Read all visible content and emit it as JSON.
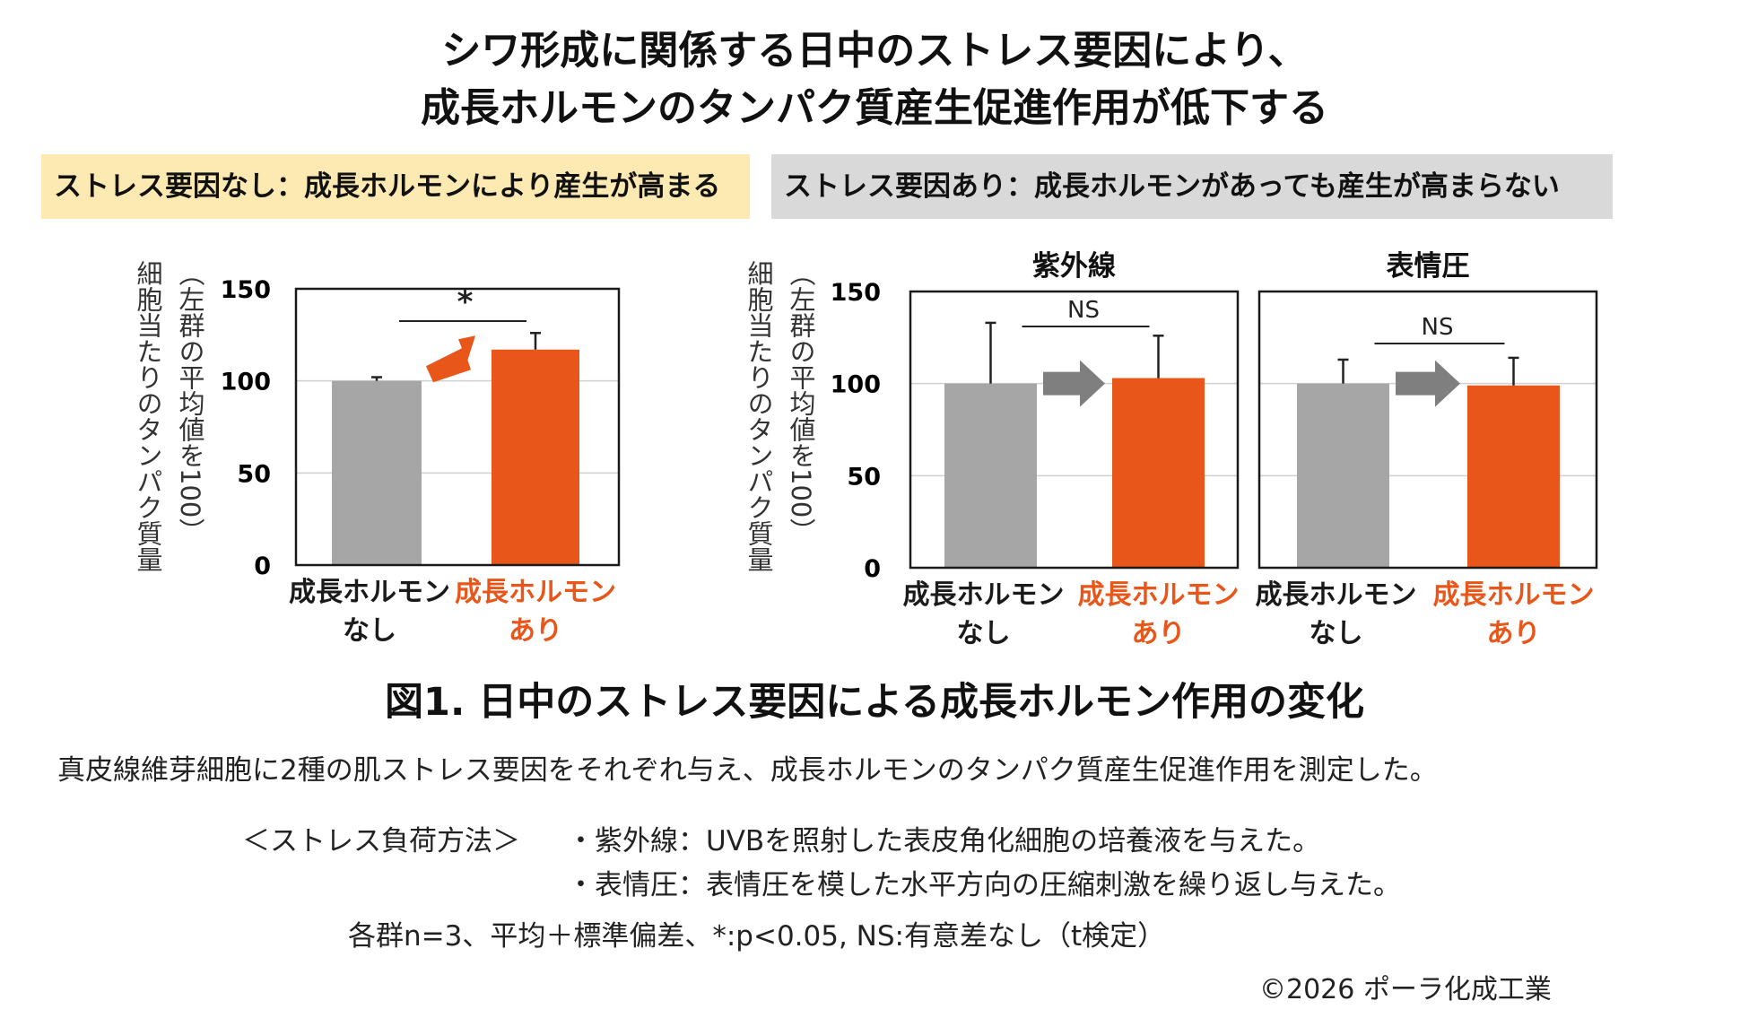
{
  "title": {
    "line1": "シワ形成に関係する日中のストレス要因により、",
    "line2": "成長ホルモンのタンパク質産生促進作用が低下する"
  },
  "labels": {
    "no_stress": "ストレス要因なし：成長ホルモンにより産生が高まる",
    "stress": "ストレス要因あり：成長ホルモンがあっても産生が高まらない"
  },
  "colors": {
    "control": "#a6a6a6",
    "treated": "#e8561a",
    "arrow_sig": "#e8561a",
    "arrow_ns": "#7f7f7f",
    "no_stress_bg": "#fde9b2",
    "stress_bg": "#d9d9d9"
  },
  "chart_data": [
    {
      "type": "bar",
      "title": "",
      "ylabel": "細胞当たりのタンパク質量\n（左群の平均値を100）",
      "ylim": [
        0,
        150
      ],
      "yticks": [
        0,
        50,
        100,
        150
      ],
      "categories": [
        "成長ホルモン\nなし",
        "成長ホルモン\nあり"
      ],
      "values": [
        100,
        117
      ],
      "errors": [
        2,
        9
      ],
      "significance": "*"
    },
    {
      "type": "bar",
      "title": "紫外線",
      "ylabel": "細胞当たりのタンパク質量\n（左群の平均値を100）",
      "ylim": [
        0,
        150
      ],
      "yticks": [
        0,
        50,
        100,
        150
      ],
      "categories": [
        "成長ホルモン\nなし",
        "成長ホルモン\nあり"
      ],
      "values": [
        100,
        103
      ],
      "errors": [
        33,
        23
      ],
      "significance": "NS"
    },
    {
      "type": "bar",
      "title": "表情圧",
      "ylabel": "",
      "ylim": [
        0,
        150
      ],
      "yticks": [],
      "categories": [
        "成長ホルモン\nなし",
        "成長ホルモン\nあり"
      ],
      "values": [
        100,
        99
      ],
      "errors": [
        13,
        15
      ],
      "significance": "NS"
    }
  ],
  "figure_caption": "図1. 日中のストレス要因による成長ホルモン作用の変化",
  "description": "真皮線維芽細胞に2種の肌ストレス要因をそれぞれ与え、成長ホルモンのタンパク質産生促進作用を測定した。",
  "method": {
    "label": "＜ストレス負荷方法＞",
    "item1": "・紫外線：UVBを照射した表皮角化細胞の培養液を与えた。",
    "item2": "・表情圧：表情圧を模した水平方向の圧縮刺激を繰り返し与えた。"
  },
  "stats_note": "各群n=3、平均＋標準偏差、*:p<0.05, NS:有意差なし（t検定）",
  "copyright": "©2026 ポーラ化成工業"
}
